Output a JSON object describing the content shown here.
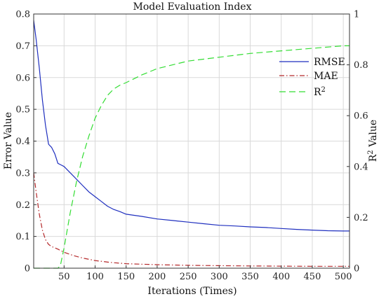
{
  "chart_data": {
    "type": "line",
    "title": "Model Evaluation Index",
    "xlabel": "Iterations  (Times)",
    "ylabel_left": "Error Value",
    "ylabel_right": "R^2 Value",
    "xlim": [
      1,
      510
    ],
    "ylim_left": [
      0,
      0.8
    ],
    "ylim_right": [
      0,
      1
    ],
    "x_ticks": [
      50,
      100,
      150,
      200,
      250,
      300,
      350,
      400,
      450,
      500
    ],
    "y_left_ticks": [
      0,
      0.1,
      0.2,
      0.3,
      0.4,
      0.5,
      0.6,
      0.7,
      0.8
    ],
    "y_left_tick_labels": [
      "0",
      "0.1",
      "0.2",
      "0.3",
      "0.4",
      "0.5",
      "0.6",
      "0.7",
      "0.8"
    ],
    "y_right_ticks": [
      0,
      0.2,
      0.4,
      0.6,
      0.8,
      1
    ],
    "y_right_tick_labels": [
      "0",
      "0.2",
      "0.4",
      "0.6",
      "0.8",
      "1"
    ],
    "grid": true,
    "legend_position": "top-right",
    "series": [
      {
        "name": "RMSE",
        "axis": "left",
        "color": "#1f2fbf",
        "dash": "solid",
        "x": [
          1,
          5,
          10,
          15,
          20,
          25,
          30,
          35,
          40,
          45,
          50,
          60,
          70,
          80,
          90,
          100,
          110,
          120,
          130,
          140,
          150,
          175,
          200,
          225,
          250,
          275,
          300,
          325,
          350,
          375,
          400,
          425,
          450,
          475,
          500,
          510
        ],
        "y": [
          0.78,
          0.72,
          0.63,
          0.53,
          0.45,
          0.39,
          0.38,
          0.36,
          0.33,
          0.325,
          0.32,
          0.3,
          0.28,
          0.26,
          0.24,
          0.225,
          0.21,
          0.195,
          0.185,
          0.178,
          0.17,
          0.163,
          0.155,
          0.15,
          0.145,
          0.14,
          0.135,
          0.133,
          0.13,
          0.128,
          0.125,
          0.122,
          0.12,
          0.118,
          0.117,
          0.117
        ]
      },
      {
        "name": "MAE",
        "axis": "left",
        "color": "#b5292b",
        "dash": "dashdot",
        "x": [
          1,
          5,
          10,
          15,
          20,
          25,
          30,
          40,
          50,
          60,
          70,
          80,
          90,
          100,
          125,
          150,
          200,
          250,
          300,
          350,
          400,
          450,
          500,
          510
        ],
        "y": [
          0.3,
          0.24,
          0.17,
          0.12,
          0.09,
          0.075,
          0.068,
          0.06,
          0.05,
          0.043,
          0.037,
          0.032,
          0.028,
          0.024,
          0.018,
          0.014,
          0.011,
          0.009,
          0.008,
          0.007,
          0.0065,
          0.006,
          0.006,
          0.006
        ]
      },
      {
        "name": "R^2",
        "axis": "right",
        "color": "#33dd33",
        "dash": "dashed",
        "x": [
          1,
          40,
          44,
          50,
          60,
          70,
          80,
          90,
          100,
          110,
          120,
          130,
          140,
          150,
          175,
          200,
          250,
          300,
          350,
          400,
          450,
          500,
          510
        ],
        "y": [
          0,
          0,
          0.01,
          0.08,
          0.22,
          0.34,
          0.44,
          0.52,
          0.59,
          0.64,
          0.68,
          0.705,
          0.72,
          0.73,
          0.76,
          0.785,
          0.815,
          0.83,
          0.845,
          0.855,
          0.865,
          0.875,
          0.875
        ]
      }
    ]
  }
}
